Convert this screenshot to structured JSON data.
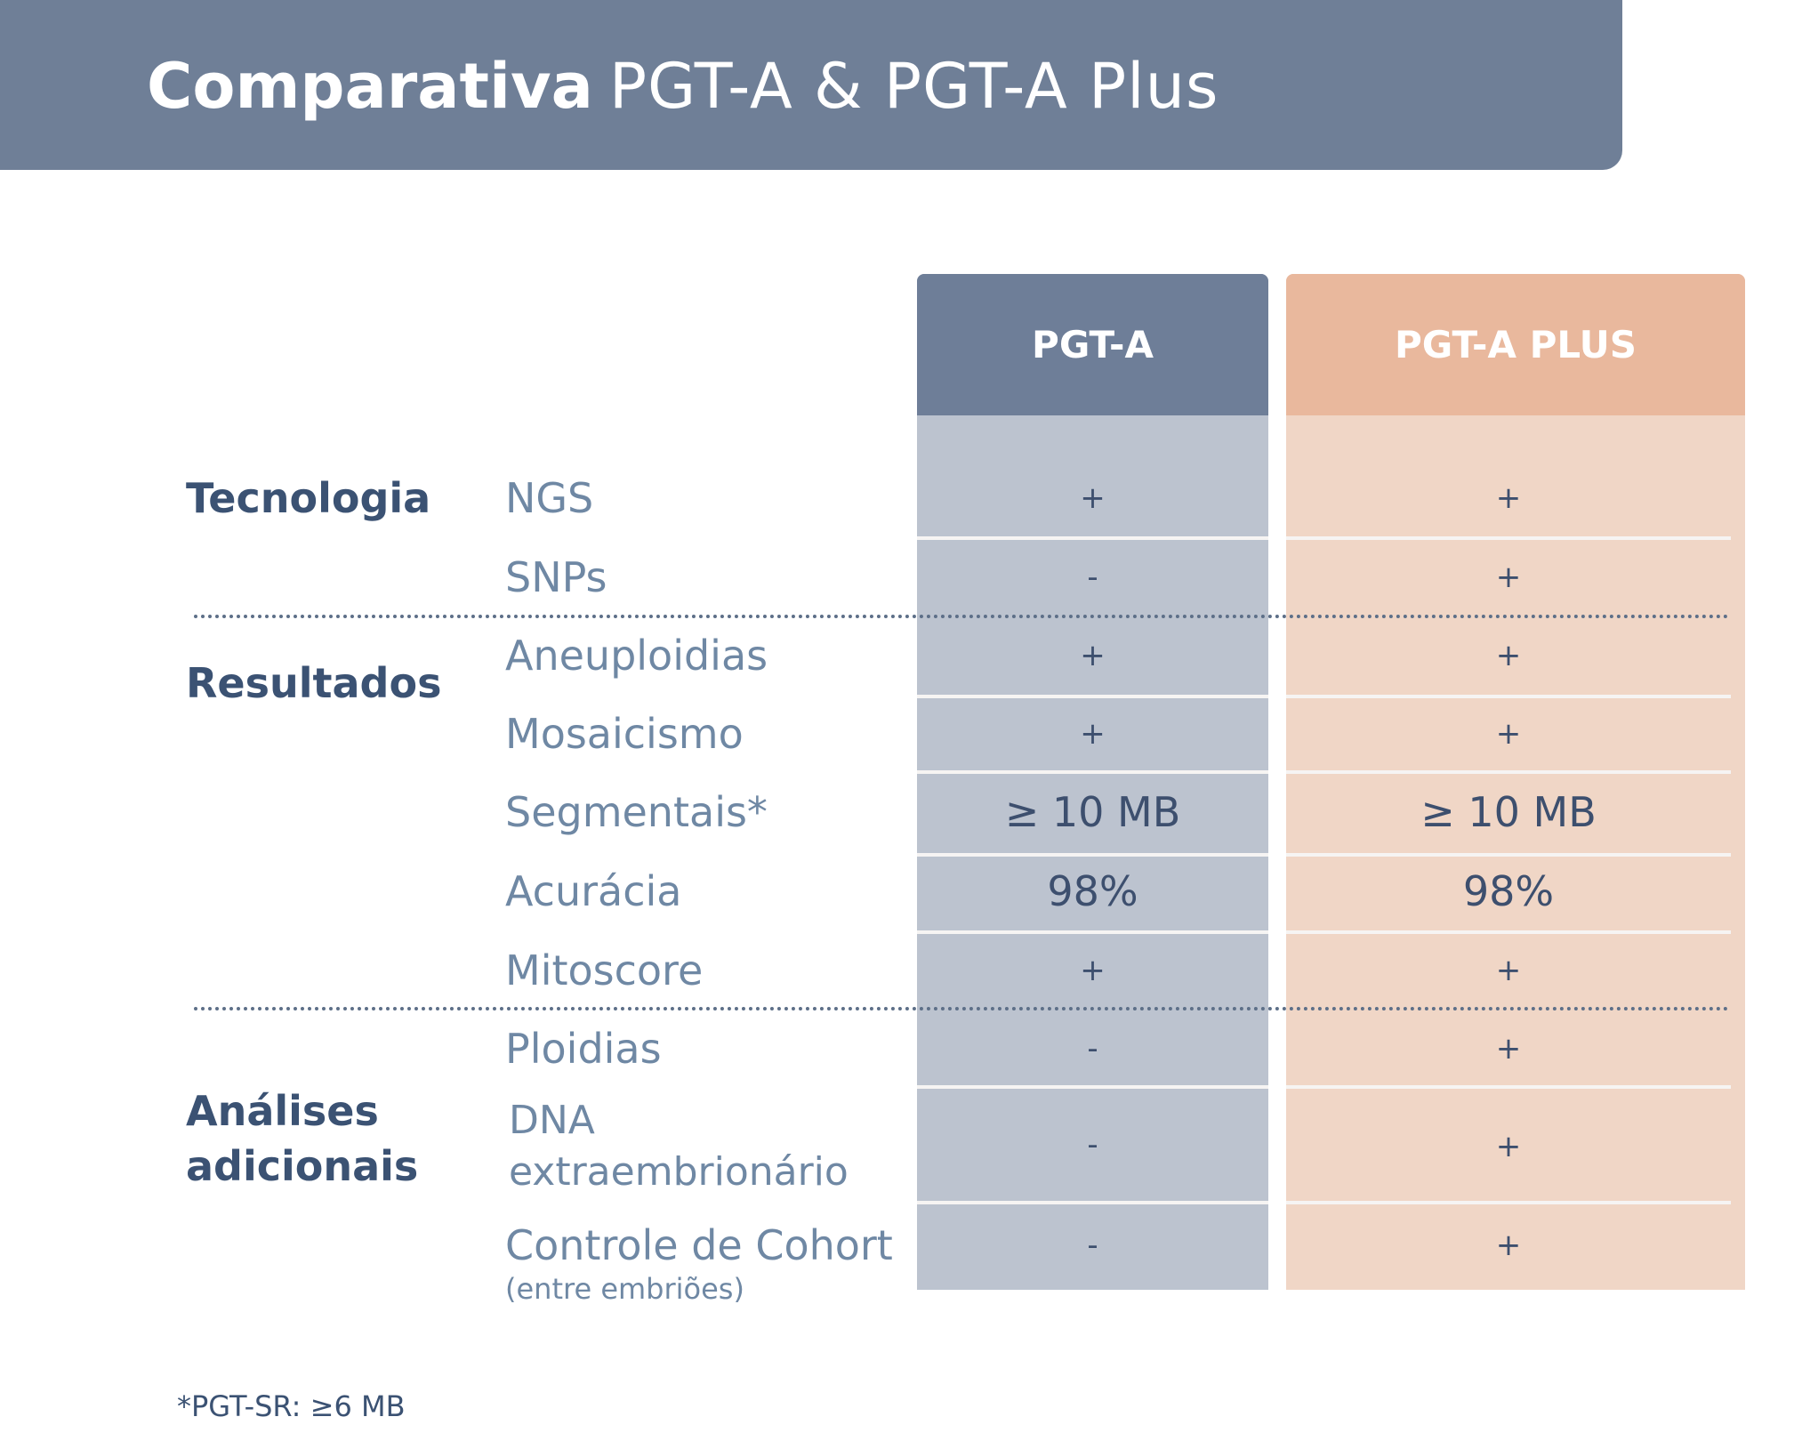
{
  "header": {
    "title_bold": "Comparativa",
    "title_light": "PGT-A & PGT-A Plus"
  },
  "columns": [
    "PGT-A",
    "PGT-A PLUS"
  ],
  "categories": [
    {
      "label": "Tecnologia"
    },
    {
      "label": "Resultados"
    },
    {
      "label": "Análises adicionais"
    }
  ],
  "rows": [
    {
      "label": "NGS",
      "pgta": "+",
      "plus": "+"
    },
    {
      "label": "SNPs",
      "pgta": "-",
      "plus": "+"
    },
    {
      "label": "Aneuploidias",
      "pgta": "+",
      "plus": "+"
    },
    {
      "label": "Mosaicismo",
      "pgta": "+",
      "plus": "+"
    },
    {
      "label": "Segmentais*",
      "pgta": "≥ 10 MB",
      "plus": "≥ 10 MB"
    },
    {
      "label": "Acurácia",
      "pgta": "98%",
      "plus": "98%"
    },
    {
      "label": "Mitoscore",
      "pgta": "+",
      "plus": "+"
    },
    {
      "label": "Ploidias",
      "pgta": "-",
      "plus": "+"
    },
    {
      "label": "DNA extraembrionário",
      "pgta": "-",
      "plus": "+"
    },
    {
      "label": "Controle de Cohort",
      "sublabel": "(entre embriões)",
      "pgta": "-",
      "plus": "+"
    }
  ],
  "footnote": "*PGT-SR: ≥6 MB",
  "colors": {
    "header": "#6f7f97",
    "pgta_header": "#6e7e98",
    "pgta_body": "#bcc3cf",
    "plus_header": "#e9b89d",
    "plus_body": "#f0d6c6",
    "category_text": "#3b5273",
    "label_text": "#6f88a4"
  }
}
